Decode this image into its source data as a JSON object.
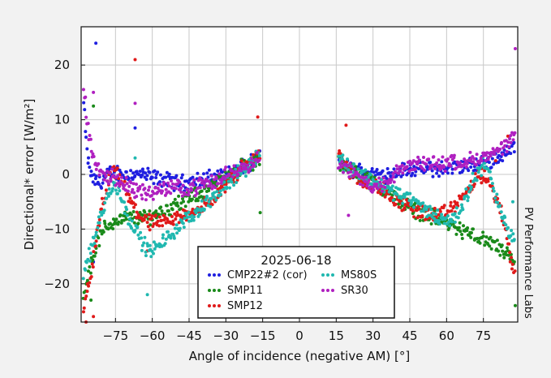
{
  "chart_data": {
    "type": "scatter",
    "xlabel": "Angle of incidence (negative AM) [°]",
    "ylabel": "Directional* error [W/m²]",
    "side_label": "PV Performance Labs",
    "legend_title": "2025-06-18",
    "legend_placement": "bottom-center",
    "grid": true,
    "xlim": [
      -89,
      89
    ],
    "ylim": [
      -27,
      27
    ],
    "x_ticks": [
      -75,
      -60,
      -45,
      -30,
      -15,
      0,
      15,
      30,
      45,
      60,
      75
    ],
    "y_ticks": [
      -20,
      -10,
      0,
      10,
      20
    ],
    "series": [
      {
        "name": "CMP22#2 (cor)",
        "color": "#1f1fe0",
        "left": [
          [
            -88,
            13
          ],
          [
            -87,
            6
          ],
          [
            -86,
            2
          ],
          [
            -85,
            0
          ],
          [
            -84,
            -1
          ],
          [
            -82,
            -1.5
          ],
          [
            -80,
            -1
          ],
          [
            -78,
            0
          ],
          [
            -75,
            0.5
          ],
          [
            -72,
            0
          ],
          [
            -70,
            0
          ],
          [
            -65,
            0
          ],
          [
            -60,
            -0.5
          ],
          [
            -55,
            -1
          ],
          [
            -50,
            -1.5
          ],
          [
            -45,
            -1.5
          ],
          [
            -40,
            -1
          ],
          [
            -35,
            -0.5
          ],
          [
            -30,
            0
          ],
          [
            -25,
            1
          ],
          [
            -20,
            2
          ],
          [
            -16,
            3
          ]
        ],
        "right": [
          [
            16,
            3
          ],
          [
            18,
            2
          ],
          [
            20,
            1
          ],
          [
            25,
            0.5
          ],
          [
            30,
            0
          ],
          [
            35,
            0
          ],
          [
            40,
            0.5
          ],
          [
            45,
            1
          ],
          [
            50,
            1
          ],
          [
            55,
            1
          ],
          [
            60,
            1
          ],
          [
            65,
            1.5
          ],
          [
            70,
            1.5
          ],
          [
            75,
            2
          ],
          [
            80,
            3
          ],
          [
            85,
            4
          ],
          [
            88,
            5.5
          ]
        ],
        "outliers": [
          [
            -83,
            24
          ],
          [
            -67,
            8.5
          ],
          [
            -84,
            -16
          ]
        ]
      },
      {
        "name": "SMP11",
        "color": "#1a8a1a",
        "left": [
          [
            -88,
            -22
          ],
          [
            -86,
            -18
          ],
          [
            -84,
            -15
          ],
          [
            -82,
            -12
          ],
          [
            -80,
            -10
          ],
          [
            -75,
            -8.5
          ],
          [
            -70,
            -8
          ],
          [
            -65,
            -8
          ],
          [
            -60,
            -7.5
          ],
          [
            -55,
            -6.5
          ],
          [
            -50,
            -5.5
          ],
          [
            -45,
            -4.5
          ],
          [
            -40,
            -3.5
          ],
          [
            -35,
            -2
          ],
          [
            -30,
            -0.5
          ],
          [
            -25,
            1
          ],
          [
            -20,
            2
          ],
          [
            -16,
            3
          ]
        ],
        "right": [
          [
            16,
            2
          ],
          [
            20,
            1
          ],
          [
            25,
            0
          ],
          [
            30,
            -1.5
          ],
          [
            35,
            -3
          ],
          [
            40,
            -4.5
          ],
          [
            45,
            -6
          ],
          [
            50,
            -7
          ],
          [
            55,
            -8
          ],
          [
            60,
            -9
          ],
          [
            65,
            -10
          ],
          [
            70,
            -11
          ],
          [
            75,
            -12
          ],
          [
            80,
            -13
          ],
          [
            85,
            -15
          ],
          [
            88,
            -17
          ]
        ],
        "outliers": [
          [
            -84,
            12.5
          ],
          [
            -16,
            -7
          ],
          [
            -85,
            -23
          ],
          [
            88,
            -24
          ]
        ]
      },
      {
        "name": "SMP12",
        "color": "#e01a1a",
        "left": [
          [
            -88,
            -25
          ],
          [
            -86,
            -20
          ],
          [
            -84,
            -16
          ],
          [
            -82,
            -10
          ],
          [
            -80,
            -5
          ],
          [
            -78,
            -2
          ],
          [
            -76,
            0.5
          ],
          [
            -74,
            0
          ],
          [
            -72,
            -2
          ],
          [
            -70,
            -4
          ],
          [
            -67,
            -6.5
          ],
          [
            -64,
            -8
          ],
          [
            -60,
            -9
          ],
          [
            -55,
            -9
          ],
          [
            -50,
            -8
          ],
          [
            -45,
            -7
          ],
          [
            -40,
            -6
          ],
          [
            -35,
            -4.5
          ],
          [
            -30,
            -2
          ],
          [
            -25,
            0.5
          ],
          [
            -20,
            2.5
          ],
          [
            -16,
            4
          ]
        ],
        "right": [
          [
            16,
            4
          ],
          [
            18,
            2
          ],
          [
            22,
            0
          ],
          [
            25,
            -1
          ],
          [
            30,
            -2
          ],
          [
            35,
            -3
          ],
          [
            40,
            -5
          ],
          [
            45,
            -6
          ],
          [
            50,
            -7
          ],
          [
            55,
            -7.5
          ],
          [
            60,
            -7
          ],
          [
            65,
            -5
          ],
          [
            70,
            -2
          ],
          [
            75,
            0
          ],
          [
            80,
            -4
          ],
          [
            84,
            -10
          ],
          [
            88,
            -19
          ]
        ],
        "outliers": [
          [
            -67,
            21
          ],
          [
            -17,
            10.5
          ],
          [
            -87,
            -27
          ],
          [
            -84,
            -26
          ],
          [
            -62,
            -14
          ],
          [
            19,
            9
          ],
          [
            80,
            2.5
          ],
          [
            85,
            7
          ]
        ]
      },
      {
        "name": "MS80S",
        "color": "#20b8b0",
        "left": [
          [
            -88,
            -18
          ],
          [
            -86,
            -15
          ],
          [
            -84,
            -12
          ],
          [
            -82,
            -9
          ],
          [
            -80,
            -6.5
          ],
          [
            -78,
            -4
          ],
          [
            -76,
            -2
          ],
          [
            -74,
            -2.5
          ],
          [
            -72,
            -5
          ],
          [
            -70,
            -7.5
          ],
          [
            -67,
            -10
          ],
          [
            -64,
            -12.5
          ],
          [
            -61,
            -14
          ],
          [
            -58,
            -13.5
          ],
          [
            -55,
            -12
          ],
          [
            -50,
            -10
          ],
          [
            -45,
            -8
          ],
          [
            -40,
            -6
          ],
          [
            -35,
            -4
          ],
          [
            -30,
            -2
          ],
          [
            -25,
            0
          ],
          [
            -20,
            2
          ],
          [
            -16,
            4
          ]
        ],
        "right": [
          [
            16,
            3
          ],
          [
            20,
            1.5
          ],
          [
            25,
            0
          ],
          [
            30,
            -1
          ],
          [
            35,
            -2.5
          ],
          [
            40,
            -3.5
          ],
          [
            45,
            -4.5
          ],
          [
            50,
            -6
          ],
          [
            55,
            -7.5
          ],
          [
            60,
            -8.5
          ],
          [
            63,
            -8
          ],
          [
            66,
            -6
          ],
          [
            69,
            -3
          ],
          [
            72,
            0
          ],
          [
            75,
            2
          ],
          [
            77,
            1
          ],
          [
            79,
            -3
          ],
          [
            82,
            -7
          ],
          [
            85,
            -10
          ],
          [
            88,
            -12.5
          ]
        ],
        "outliers": [
          [
            -67,
            3
          ],
          [
            -62,
            -22
          ],
          [
            87,
            -5
          ]
        ]
      },
      {
        "name": "SR30",
        "color": "#b020c0",
        "left": [
          [
            -88,
            16
          ],
          [
            -86,
            8
          ],
          [
            -84,
            3
          ],
          [
            -82,
            1
          ],
          [
            -80,
            0
          ],
          [
            -77,
            -0.5
          ],
          [
            -74,
            -1
          ],
          [
            -70,
            -2
          ],
          [
            -66,
            -3
          ],
          [
            -62,
            -3.5
          ],
          [
            -58,
            -3
          ],
          [
            -54,
            -2.5
          ],
          [
            -50,
            -2.5
          ],
          [
            -45,
            -2.5
          ],
          [
            -40,
            -2
          ],
          [
            -35,
            -1.5
          ],
          [
            -30,
            0
          ],
          [
            -25,
            1
          ],
          [
            -20,
            2
          ],
          [
            -16,
            3
          ]
        ],
        "right": [
          [
            16,
            2
          ],
          [
            20,
            1
          ],
          [
            25,
            -1
          ],
          [
            30,
            -2
          ],
          [
            35,
            -2
          ],
          [
            40,
            0.5
          ],
          [
            45,
            1.5
          ],
          [
            50,
            2
          ],
          [
            55,
            2
          ],
          [
            60,
            2
          ],
          [
            65,
            2.5
          ],
          [
            70,
            2.5
          ],
          [
            75,
            3
          ],
          [
            80,
            4
          ],
          [
            85,
            5
          ],
          [
            88,
            8
          ]
        ],
        "outliers": [
          [
            -84,
            15
          ],
          [
            -67,
            13
          ],
          [
            20,
            -7.5
          ],
          [
            88,
            23
          ]
        ]
      }
    ]
  }
}
